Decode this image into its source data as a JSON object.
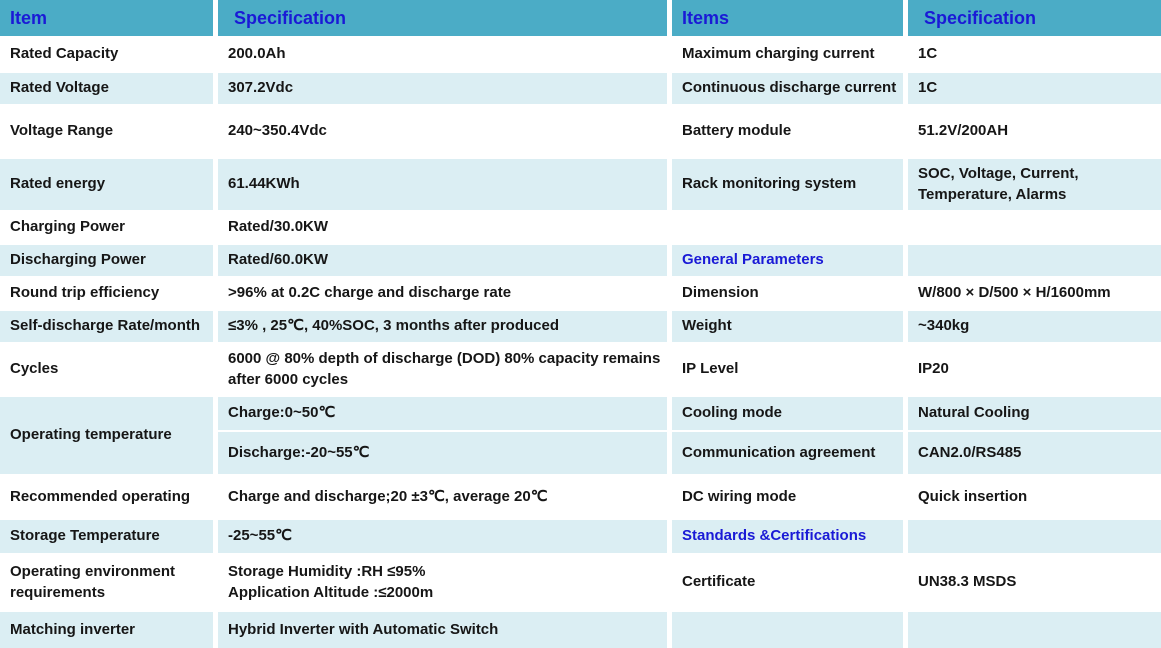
{
  "colors": {
    "header_bg": "#4BACC6",
    "alt_row_bg": "#DBEEF3",
    "row_bg": "#FFFFFF",
    "header_text_blue": "#1A1AD6",
    "section_text_blue": "#1A1AD6",
    "body_text": "#161616",
    "divider": "#FFFFFF"
  },
  "header": {
    "col1": "Item",
    "col2": "Specification",
    "col3": "Items",
    "col4": "Specification"
  },
  "rows": [
    {
      "item": "Rated Capacity",
      "spec": "200.0Ah",
      "item2": "Maximum charging current",
      "spec2": "1C"
    },
    {
      "item": "Rated Voltage",
      "spec": "307.2Vdc",
      "item2": "Continuous discharge current",
      "spec2": "1C"
    },
    {
      "item": "Voltage Range",
      "spec": "240~350.4Vdc",
      "item2": "Battery module",
      "spec2": "51.2V/200AH"
    },
    {
      "item": "Rated  energy",
      "spec": "61.44KWh",
      "item2": "Rack monitoring system",
      "spec2": "SOC, Voltage, Current, Temperature, Alarms"
    },
    {
      "item": "Charging Power",
      "spec": "Rated/30.0KW",
      "item2": "",
      "spec2": ""
    },
    {
      "item": "Discharging Power",
      "spec": "Rated/60.0KW",
      "item2": "General Parameters",
      "spec2": ""
    },
    {
      "item": "Round trip efficiency",
      "spec": ">96% at 0.2C charge and discharge rate",
      "item2": "Dimension",
      "spec2": "W/800 × D/500 × H/1600mm"
    },
    {
      "item": "Self-discharge Rate/month",
      "spec": "≤3% , 25℃, 40%SOC, 3 months after produced",
      "item2": "Weight",
      "spec2": "~340kg"
    },
    {
      "item": "Cycles",
      "spec": "6000 @ 80% depth of discharge (DOD) 80% capacity remains after 6000 cycles",
      "item2": "IP Level",
      "spec2": "IP20"
    },
    {
      "item": "Operating temperature",
      "spec": "Charge:0~50℃",
      "item2": "Cooling mode",
      "spec2": "Natural Cooling"
    },
    {
      "spec": "Discharge:-20~55℃",
      "item2": "Communication agreement",
      "spec2": "CAN2.0/RS485"
    },
    {
      "item": "Recommended operating",
      "spec": "Charge and discharge;20 ±3℃, average 20℃",
      "item2": "DC wiring mode",
      "spec2": "Quick insertion"
    },
    {
      "item": "Storage Temperature",
      "spec": "-25~55℃",
      "item2": "Standards &Certifications",
      "spec2": ""
    },
    {
      "item": "Operating environment requirements",
      "spec": "Storage Humidity :RH ≤95%\nApplication Altitude :≤2000m",
      "item2": "Certificate",
      "spec2": "UN38.3 MSDS"
    },
    {
      "item": "Matching inverter",
      "spec": "Hybrid Inverter with Automatic Switch",
      "item2": "",
      "spec2": ""
    }
  ]
}
